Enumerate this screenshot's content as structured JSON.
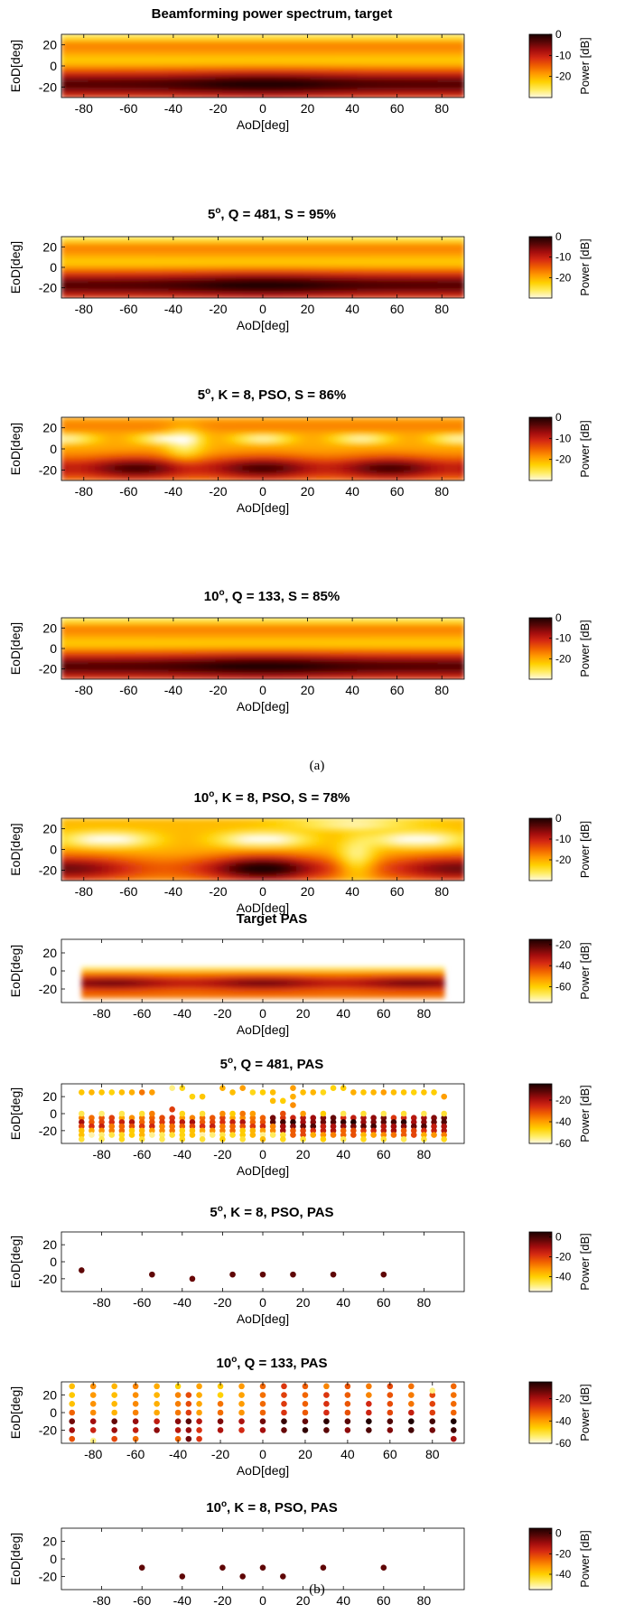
{
  "colors": {
    "colormap_hot_reversed": [
      "#fff9e6",
      "#ffec60",
      "#ffd000",
      "#ff9a00",
      "#f06000",
      "#d62a12",
      "#a30d0d",
      "#5a0606",
      "#1c0000"
    ],
    "axis": "#000000",
    "background": "#ffffff"
  },
  "sections": [
    {
      "label": "(a)"
    },
    {
      "label": "(b)"
    }
  ],
  "chart_data": [
    {
      "type": "heatmap",
      "title": "Beamforming power spectrum, target",
      "xlabel": "AoD[deg]",
      "ylabel": "EoD[deg]",
      "xlim": [
        -90,
        90
      ],
      "ylim": [
        -30,
        30
      ],
      "xticks": [
        -80,
        -60,
        -40,
        -20,
        0,
        20,
        40,
        60,
        80
      ],
      "yticks": [
        20,
        0,
        -20
      ],
      "colorbar": {
        "label": "Power [dB]",
        "ticks": [
          0,
          -10,
          -20
        ],
        "range": [
          -30,
          0
        ]
      },
      "pattern": "smooth_target"
    },
    {
      "type": "heatmap",
      "title_main": "5",
      "title_sup": "o",
      "title_rest": ", Q = 481, S = 95%",
      "xlabel": "AoD[deg]",
      "ylabel": "EoD[deg]",
      "xlim": [
        -90,
        90
      ],
      "ylim": [
        -30,
        30
      ],
      "xticks": [
        -80,
        -60,
        -40,
        -20,
        0,
        20,
        40,
        60,
        80
      ],
      "yticks": [
        20,
        0,
        -20
      ],
      "colorbar": {
        "label": "Power [dB]",
        "ticks": [
          0,
          -10,
          -20
        ],
        "range": [
          -30,
          0
        ]
      },
      "pattern": "smooth_target"
    },
    {
      "type": "heatmap",
      "title_main": "5",
      "title_sup": "o",
      "title_rest": ", K = 8, PSO, S = 86%",
      "xlabel": "AoD[deg]",
      "ylabel": "EoD[deg]",
      "xlim": [
        -90,
        90
      ],
      "ylim": [
        -30,
        30
      ],
      "xticks": [
        -80,
        -60,
        -40,
        -20,
        0,
        20,
        40,
        60,
        80
      ],
      "yticks": [
        20,
        0,
        -20
      ],
      "colorbar": {
        "label": "Power [dB]",
        "ticks": [
          0,
          -10,
          -20
        ],
        "range": [
          -30,
          0
        ]
      },
      "pattern": "lobed"
    },
    {
      "type": "heatmap",
      "title_main": "10",
      "title_sup": "o",
      "title_rest": ", Q = 133, S = 85%",
      "xlabel": "AoD[deg]",
      "ylabel": "EoD[deg]",
      "xlim": [
        -90,
        90
      ],
      "ylim": [
        -30,
        30
      ],
      "xticks": [
        -80,
        -60,
        -40,
        -20,
        0,
        20,
        40,
        60,
        80
      ],
      "yticks": [
        20,
        0,
        -20
      ],
      "colorbar": {
        "label": "Power [dB]",
        "ticks": [
          0,
          -10,
          -20
        ],
        "range": [
          -30,
          0
        ]
      },
      "pattern": "smooth_target"
    },
    {
      "type": "heatmap",
      "title_main": "10",
      "title_sup": "o",
      "title_rest": ", K = 8, PSO, S = 78%",
      "xlabel": "AoD[deg]",
      "ylabel": "EoD[deg]",
      "xlim": [
        -90,
        90
      ],
      "ylim": [
        -30,
        30
      ],
      "xticks": [
        -80,
        -60,
        -40,
        -20,
        0,
        20,
        40,
        60,
        80
      ],
      "yticks": [
        20,
        0,
        -20
      ],
      "colorbar": {
        "label": "Power [dB]",
        "ticks": [
          0,
          -10,
          -20
        ],
        "range": [
          -30,
          0
        ]
      },
      "pattern": "blobby"
    },
    {
      "type": "heatmap",
      "title": "Target PAS",
      "xlabel": "AoD[deg]",
      "ylabel": "EoD[deg]",
      "xlim": [
        -100,
        100
      ],
      "ylim": [
        -35,
        35
      ],
      "data_xlim": [
        -90,
        90
      ],
      "data_ylim": [
        -30,
        10
      ],
      "xticks": [
        -80,
        -60,
        -40,
        -20,
        0,
        20,
        40,
        60,
        80
      ],
      "yticks": [
        20,
        0,
        -20
      ],
      "colorbar": {
        "label": "Power [dB]",
        "ticks": [
          -20,
          -40,
          -60
        ],
        "range": [
          -75,
          -15
        ]
      },
      "pattern": "target_pas"
    },
    {
      "type": "scatter",
      "title_main": "5",
      "title_sup": "o",
      "title_rest": ", Q = 481, PAS",
      "xlabel": "AoD[deg]",
      "ylabel": "EoD[deg]",
      "xlim": [
        -100,
        100
      ],
      "ylim": [
        -35,
        35
      ],
      "xticks": [
        -80,
        -60,
        -40,
        -20,
        0,
        20,
        40,
        60,
        80
      ],
      "yticks": [
        20,
        0,
        -20
      ],
      "colorbar": {
        "label": "Power [dB]",
        "ticks": [
          -20,
          -40,
          -60
        ],
        "range": [
          -60,
          -5
        ]
      },
      "grid_x_step": 5,
      "dense_rows": [
        {
          "y": -5,
          "power": -20
        },
        {
          "y": -10,
          "power": -12
        },
        {
          "y": -15,
          "power": -16
        },
        {
          "y": -20,
          "power": -26
        },
        {
          "y": -25,
          "power": -36
        }
      ],
      "sparse_points": [
        {
          "x": -90,
          "y": 25,
          "power": -45
        },
        {
          "x": -85,
          "y": 25,
          "power": -43
        },
        {
          "x": -80,
          "y": 25,
          "power": -45
        },
        {
          "x": -75,
          "y": 25,
          "power": -47
        },
        {
          "x": -70,
          "y": 25,
          "power": -44
        },
        {
          "x": -65,
          "y": 25,
          "power": -42
        },
        {
          "x": -60,
          "y": 25,
          "power": -35
        },
        {
          "x": -55,
          "y": 25,
          "power": -40
        },
        {
          "x": -45,
          "y": 30,
          "power": -55
        },
        {
          "x": -40,
          "y": 30,
          "power": -48
        },
        {
          "x": -35,
          "y": 20,
          "power": -47
        },
        {
          "x": -30,
          "y": 20,
          "power": -45
        },
        {
          "x": -20,
          "y": 30,
          "power": -42
        },
        {
          "x": -15,
          "y": 25,
          "power": -44
        },
        {
          "x": -10,
          "y": 30,
          "power": -40
        },
        {
          "x": -5,
          "y": 25,
          "power": -48
        },
        {
          "x": 0,
          "y": 25,
          "power": -46
        },
        {
          "x": 5,
          "y": 25,
          "power": -44
        },
        {
          "x": 10,
          "y": 15,
          "power": -46
        },
        {
          "x": 15,
          "y": 30,
          "power": -40
        },
        {
          "x": 15,
          "y": 20,
          "power": -42
        },
        {
          "x": 20,
          "y": 25,
          "power": -44
        },
        {
          "x": 25,
          "y": 25,
          "power": -43
        },
        {
          "x": 30,
          "y": 25,
          "power": -48
        },
        {
          "x": 35,
          "y": 30,
          "power": -47
        },
        {
          "x": 40,
          "y": 30,
          "power": -46
        },
        {
          "x": 45,
          "y": 25,
          "power": -42
        },
        {
          "x": 50,
          "y": 25,
          "power": -45
        },
        {
          "x": 55,
          "y": 25,
          "power": -43
        },
        {
          "x": 60,
          "y": 25,
          "power": -40
        },
        {
          "x": 65,
          "y": 25,
          "power": -44
        },
        {
          "x": 70,
          "y": 25,
          "power": -45
        },
        {
          "x": 75,
          "y": 25,
          "power": -47
        },
        {
          "x": 80,
          "y": 25,
          "power": -45
        },
        {
          "x": 85,
          "y": 25,
          "power": -46
        },
        {
          "x": 90,
          "y": 20,
          "power": -40
        },
        {
          "x": -90,
          "y": 0,
          "power": -52
        },
        {
          "x": -80,
          "y": 0,
          "power": -54
        },
        {
          "x": -70,
          "y": 0,
          "power": -52
        },
        {
          "x": -60,
          "y": 0,
          "power": -50
        },
        {
          "x": -55,
          "y": 0,
          "power": -36
        },
        {
          "x": -45,
          "y": 5,
          "power": -28
        },
        {
          "x": -40,
          "y": 0,
          "power": -48
        },
        {
          "x": -30,
          "y": 0,
          "power": -50
        },
        {
          "x": -20,
          "y": 0,
          "power": -38
        },
        {
          "x": -15,
          "y": 0,
          "power": -46
        },
        {
          "x": -10,
          "y": 0,
          "power": -35
        },
        {
          "x": -5,
          "y": 0,
          "power": -40
        },
        {
          "x": 5,
          "y": 15,
          "power": -44
        },
        {
          "x": 10,
          "y": 0,
          "power": -30
        },
        {
          "x": 15,
          "y": 10,
          "power": -38
        },
        {
          "x": 20,
          "y": 0,
          "power": -40
        },
        {
          "x": 30,
          "y": 0,
          "power": -46
        },
        {
          "x": 40,
          "y": 0,
          "power": -52
        },
        {
          "x": 50,
          "y": 0,
          "power": -50
        },
        {
          "x": 60,
          "y": 0,
          "power": -52
        },
        {
          "x": 70,
          "y": 0,
          "power": -50
        },
        {
          "x": 80,
          "y": 0,
          "power": -52
        },
        {
          "x": 90,
          "y": 0,
          "power": -50
        },
        {
          "x": -90,
          "y": -30,
          "power": -50
        },
        {
          "x": -80,
          "y": -30,
          "power": -52
        },
        {
          "x": -70,
          "y": -30,
          "power": -48
        },
        {
          "x": -60,
          "y": -30,
          "power": -50
        },
        {
          "x": -50,
          "y": -30,
          "power": -52
        },
        {
          "x": -40,
          "y": -30,
          "power": -48
        },
        {
          "x": -30,
          "y": -30,
          "power": -50
        },
        {
          "x": -20,
          "y": -30,
          "power": -46
        },
        {
          "x": -10,
          "y": -30,
          "power": -50
        },
        {
          "x": 0,
          "y": -30,
          "power": -44
        },
        {
          "x": 10,
          "y": -30,
          "power": -48
        },
        {
          "x": 20,
          "y": -30,
          "power": -50
        },
        {
          "x": 30,
          "y": -30,
          "power": -46
        },
        {
          "x": 40,
          "y": -30,
          "power": -52
        },
        {
          "x": 50,
          "y": -30,
          "power": -48
        },
        {
          "x": 60,
          "y": -30,
          "power": -50
        },
        {
          "x": 70,
          "y": -30,
          "power": -52
        },
        {
          "x": 80,
          "y": -30,
          "power": -50
        },
        {
          "x": 90,
          "y": -30,
          "power": -48
        }
      ]
    },
    {
      "type": "scatter",
      "title_main": "5",
      "title_sup": "o",
      "title_rest": ", K = 8, PSO, PAS",
      "xlabel": "AoD[deg]",
      "ylabel": "EoD[deg]",
      "xlim": [
        -100,
        100
      ],
      "ylim": [
        -35,
        35
      ],
      "xticks": [
        -80,
        -60,
        -40,
        -20,
        0,
        20,
        40,
        60,
        80
      ],
      "yticks": [
        20,
        0,
        -20
      ],
      "colorbar": {
        "label": "Power [dB]",
        "ticks": [
          0,
          -20,
          -40
        ],
        "range": [
          -55,
          5
        ]
      },
      "points": [
        {
          "x": -90,
          "y": -10,
          "power": -3
        },
        {
          "x": -55,
          "y": -15,
          "power": -3
        },
        {
          "x": -35,
          "y": -20,
          "power": -4
        },
        {
          "x": -15,
          "y": -15,
          "power": -3
        },
        {
          "x": 0,
          "y": -15,
          "power": -3
        },
        {
          "x": 15,
          "y": -15,
          "power": -3
        },
        {
          "x": 35,
          "y": -15,
          "power": -3
        },
        {
          "x": 60,
          "y": -15,
          "power": -3
        }
      ]
    },
    {
      "type": "scatter",
      "title_main": "10",
      "title_sup": "o",
      "title_rest": ", Q = 133, PAS",
      "xlabel": "AoD[deg]",
      "ylabel": "EoD[deg]",
      "xlim": [
        -95,
        95
      ],
      "ylim": [
        -35,
        35
      ],
      "xticks": [
        -80,
        -60,
        -40,
        -20,
        0,
        20,
        40,
        60,
        80
      ],
      "yticks": [
        20,
        0,
        -20
      ],
      "colorbar": {
        "label": "Power [dB]",
        "ticks": [
          -20,
          -40,
          -60
        ],
        "range": [
          -60,
          -5
        ]
      },
      "grid_x_step": 10,
      "row_power": [
        {
          "y": 30,
          "power": -32
        },
        {
          "y": 20,
          "power": -32
        },
        {
          "y": 10,
          "power": -30
        },
        {
          "y": 0,
          "power": -28
        },
        {
          "y": -10,
          "power": -8
        },
        {
          "y": -20,
          "power": -12
        },
        {
          "y": -30,
          "power": -22
        }
      ],
      "missing_points": [
        {
          "x": -80,
          "y": -30
        },
        {
          "x": -50,
          "y": -30
        },
        {
          "x": -20,
          "y": -30
        },
        {
          "x": -10,
          "y": -30
        },
        {
          "x": 0,
          "y": -30
        },
        {
          "x": 10,
          "y": -30
        },
        {
          "x": 20,
          "y": -30
        },
        {
          "x": 30,
          "y": -30
        },
        {
          "x": 40,
          "y": -30
        },
        {
          "x": 50,
          "y": -30
        },
        {
          "x": 60,
          "y": -30
        },
        {
          "x": 70,
          "y": -30
        },
        {
          "x": 80,
          "y": -30
        },
        {
          "x": 80,
          "y": 30
        }
      ],
      "extra_points": [
        {
          "x": -80,
          "y": -32,
          "power": -55
        },
        {
          "x": -35,
          "y": 20,
          "power": -30
        },
        {
          "x": -35,
          "y": 10,
          "power": -30
        },
        {
          "x": -35,
          "y": 0,
          "power": -28
        },
        {
          "x": -35,
          "y": -10,
          "power": -12
        },
        {
          "x": -35,
          "y": -20,
          "power": -18
        },
        {
          "x": -35,
          "y": -30,
          "power": -14
        },
        {
          "x": 80,
          "y": 25,
          "power": -55
        }
      ]
    },
    {
      "type": "scatter",
      "title_main": "10",
      "title_sup": "o",
      "title_rest": ", K = 8, PSO, PAS",
      "xlabel": "AoD[deg]",
      "ylabel": "EoD[deg]",
      "xlim": [
        -100,
        100
      ],
      "ylim": [
        -35,
        35
      ],
      "xticks": [
        -80,
        -60,
        -40,
        -20,
        0,
        20,
        40,
        60,
        80
      ],
      "yticks": [
        20,
        0,
        -20
      ],
      "colorbar": {
        "label": "Power [dB]",
        "ticks": [
          0,
          -20,
          -40
        ],
        "range": [
          -55,
          5
        ]
      },
      "points": [
        {
          "x": -60,
          "y": -10,
          "power": -3
        },
        {
          "x": -40,
          "y": -20,
          "power": -3
        },
        {
          "x": -20,
          "y": -10,
          "power": -3
        },
        {
          "x": -10,
          "y": -20,
          "power": -3
        },
        {
          "x": 0,
          "y": -10,
          "power": -3
        },
        {
          "x": 10,
          "y": -20,
          "power": -3
        },
        {
          "x": 30,
          "y": -10,
          "power": -3
        },
        {
          "x": 60,
          "y": -10,
          "power": -3
        }
      ]
    }
  ]
}
